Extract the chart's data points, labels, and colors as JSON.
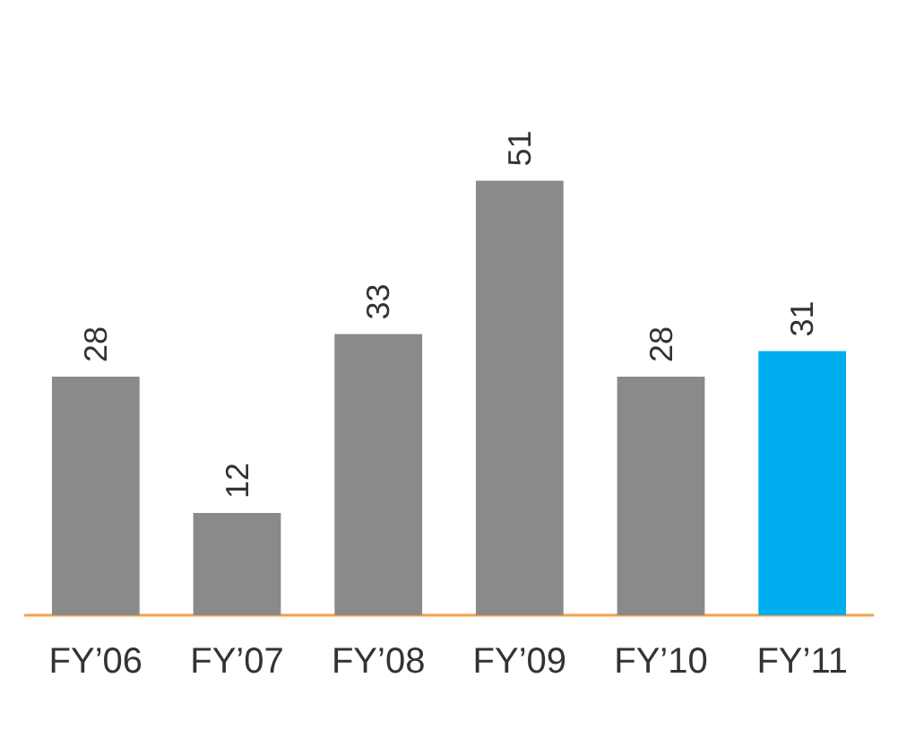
{
  "chart_data": {
    "type": "bar",
    "categories": [
      "FY’06",
      "FY’07",
      "FY’08",
      "FY’09",
      "FY’10",
      "FY’11"
    ],
    "values": [
      28,
      12,
      33,
      51,
      28,
      31
    ],
    "colors": [
      "#8a8a8c",
      "#8a8a8c",
      "#8a8a8c",
      "#8a8a8c",
      "#8a8a8c",
      "#00aeef"
    ],
    "data_labels": true
  }
}
